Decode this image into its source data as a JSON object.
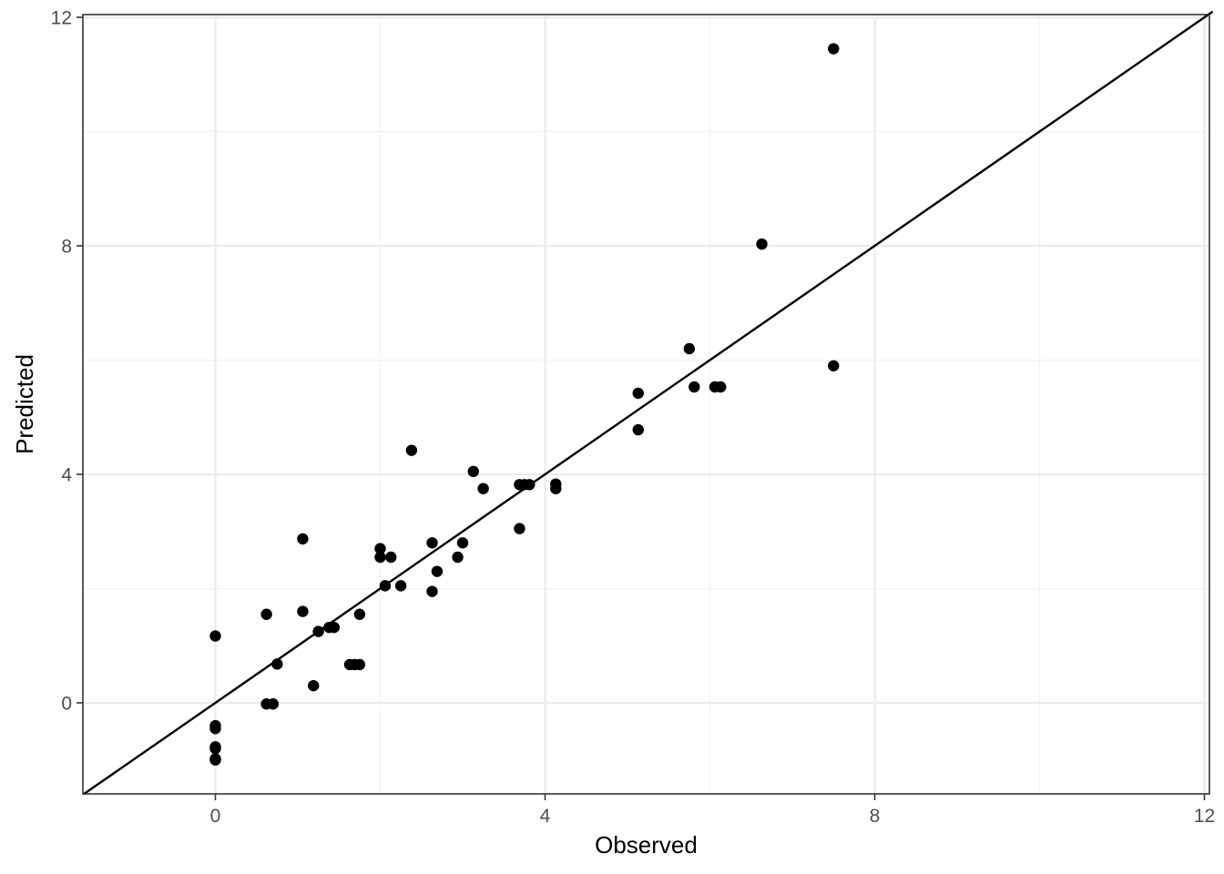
{
  "chart_data": {
    "type": "scatter",
    "title": "",
    "xlabel": "Observed",
    "ylabel": "Predicted",
    "xlim": [
      -1.6,
      12.1
    ],
    "ylim": [
      -1.6,
      12.1
    ],
    "x_ticks": [
      0,
      4,
      8,
      12
    ],
    "y_ticks": [
      0,
      4,
      8,
      12
    ],
    "x_tick_labels": [
      "0",
      "4",
      "8",
      "12"
    ],
    "y_tick_labels": [
      "0",
      "4",
      "8",
      "12"
    ],
    "grid": true,
    "minor_grid": true,
    "reference_line": {
      "slope": 1,
      "intercept": 0
    },
    "point_color": "#000000",
    "points": [
      {
        "x": 0,
        "y": 1.17
      },
      {
        "x": 0,
        "y": -0.4
      },
      {
        "x": 0,
        "y": -0.45
      },
      {
        "x": 0,
        "y": -0.77
      },
      {
        "x": 0,
        "y": -0.8
      },
      {
        "x": 0,
        "y": -0.98
      },
      {
        "x": 0,
        "y": -1.0
      },
      {
        "x": 0.62,
        "y": 1.55
      },
      {
        "x": 0.62,
        "y": -0.02
      },
      {
        "x": 0.7,
        "y": -0.02
      },
      {
        "x": 0.75,
        "y": 0.68
      },
      {
        "x": 1.06,
        "y": 2.87
      },
      {
        "x": 1.06,
        "y": 1.6
      },
      {
        "x": 1.19,
        "y": 0.3
      },
      {
        "x": 1.25,
        "y": 1.25
      },
      {
        "x": 1.38,
        "y": 1.32
      },
      {
        "x": 1.44,
        "y": 1.32
      },
      {
        "x": 1.63,
        "y": 0.67
      },
      {
        "x": 1.69,
        "y": 0.67
      },
      {
        "x": 1.75,
        "y": 0.67
      },
      {
        "x": 1.75,
        "y": 1.55
      },
      {
        "x": 2.0,
        "y": 2.7
      },
      {
        "x": 2.0,
        "y": 2.55
      },
      {
        "x": 2.06,
        "y": 2.05
      },
      {
        "x": 2.13,
        "y": 2.55
      },
      {
        "x": 2.25,
        "y": 2.05
      },
      {
        "x": 2.38,
        "y": 4.42
      },
      {
        "x": 2.63,
        "y": 2.8
      },
      {
        "x": 2.63,
        "y": 1.95
      },
      {
        "x": 2.69,
        "y": 2.3
      },
      {
        "x": 2.94,
        "y": 2.55
      },
      {
        "x": 3.0,
        "y": 2.8
      },
      {
        "x": 3.13,
        "y": 4.05
      },
      {
        "x": 3.25,
        "y": 3.75
      },
      {
        "x": 3.69,
        "y": 3.05
      },
      {
        "x": 3.69,
        "y": 3.82
      },
      {
        "x": 3.75,
        "y": 3.82
      },
      {
        "x": 3.81,
        "y": 3.82
      },
      {
        "x": 4.13,
        "y": 3.83
      },
      {
        "x": 4.13,
        "y": 3.75
      },
      {
        "x": 5.13,
        "y": 5.42
      },
      {
        "x": 5.13,
        "y": 4.78
      },
      {
        "x": 5.75,
        "y": 6.2
      },
      {
        "x": 5.81,
        "y": 5.53
      },
      {
        "x": 6.06,
        "y": 5.53
      },
      {
        "x": 6.13,
        "y": 5.53
      },
      {
        "x": 6.63,
        "y": 8.03
      },
      {
        "x": 7.5,
        "y": 11.45
      },
      {
        "x": 7.5,
        "y": 5.9
      }
    ]
  }
}
